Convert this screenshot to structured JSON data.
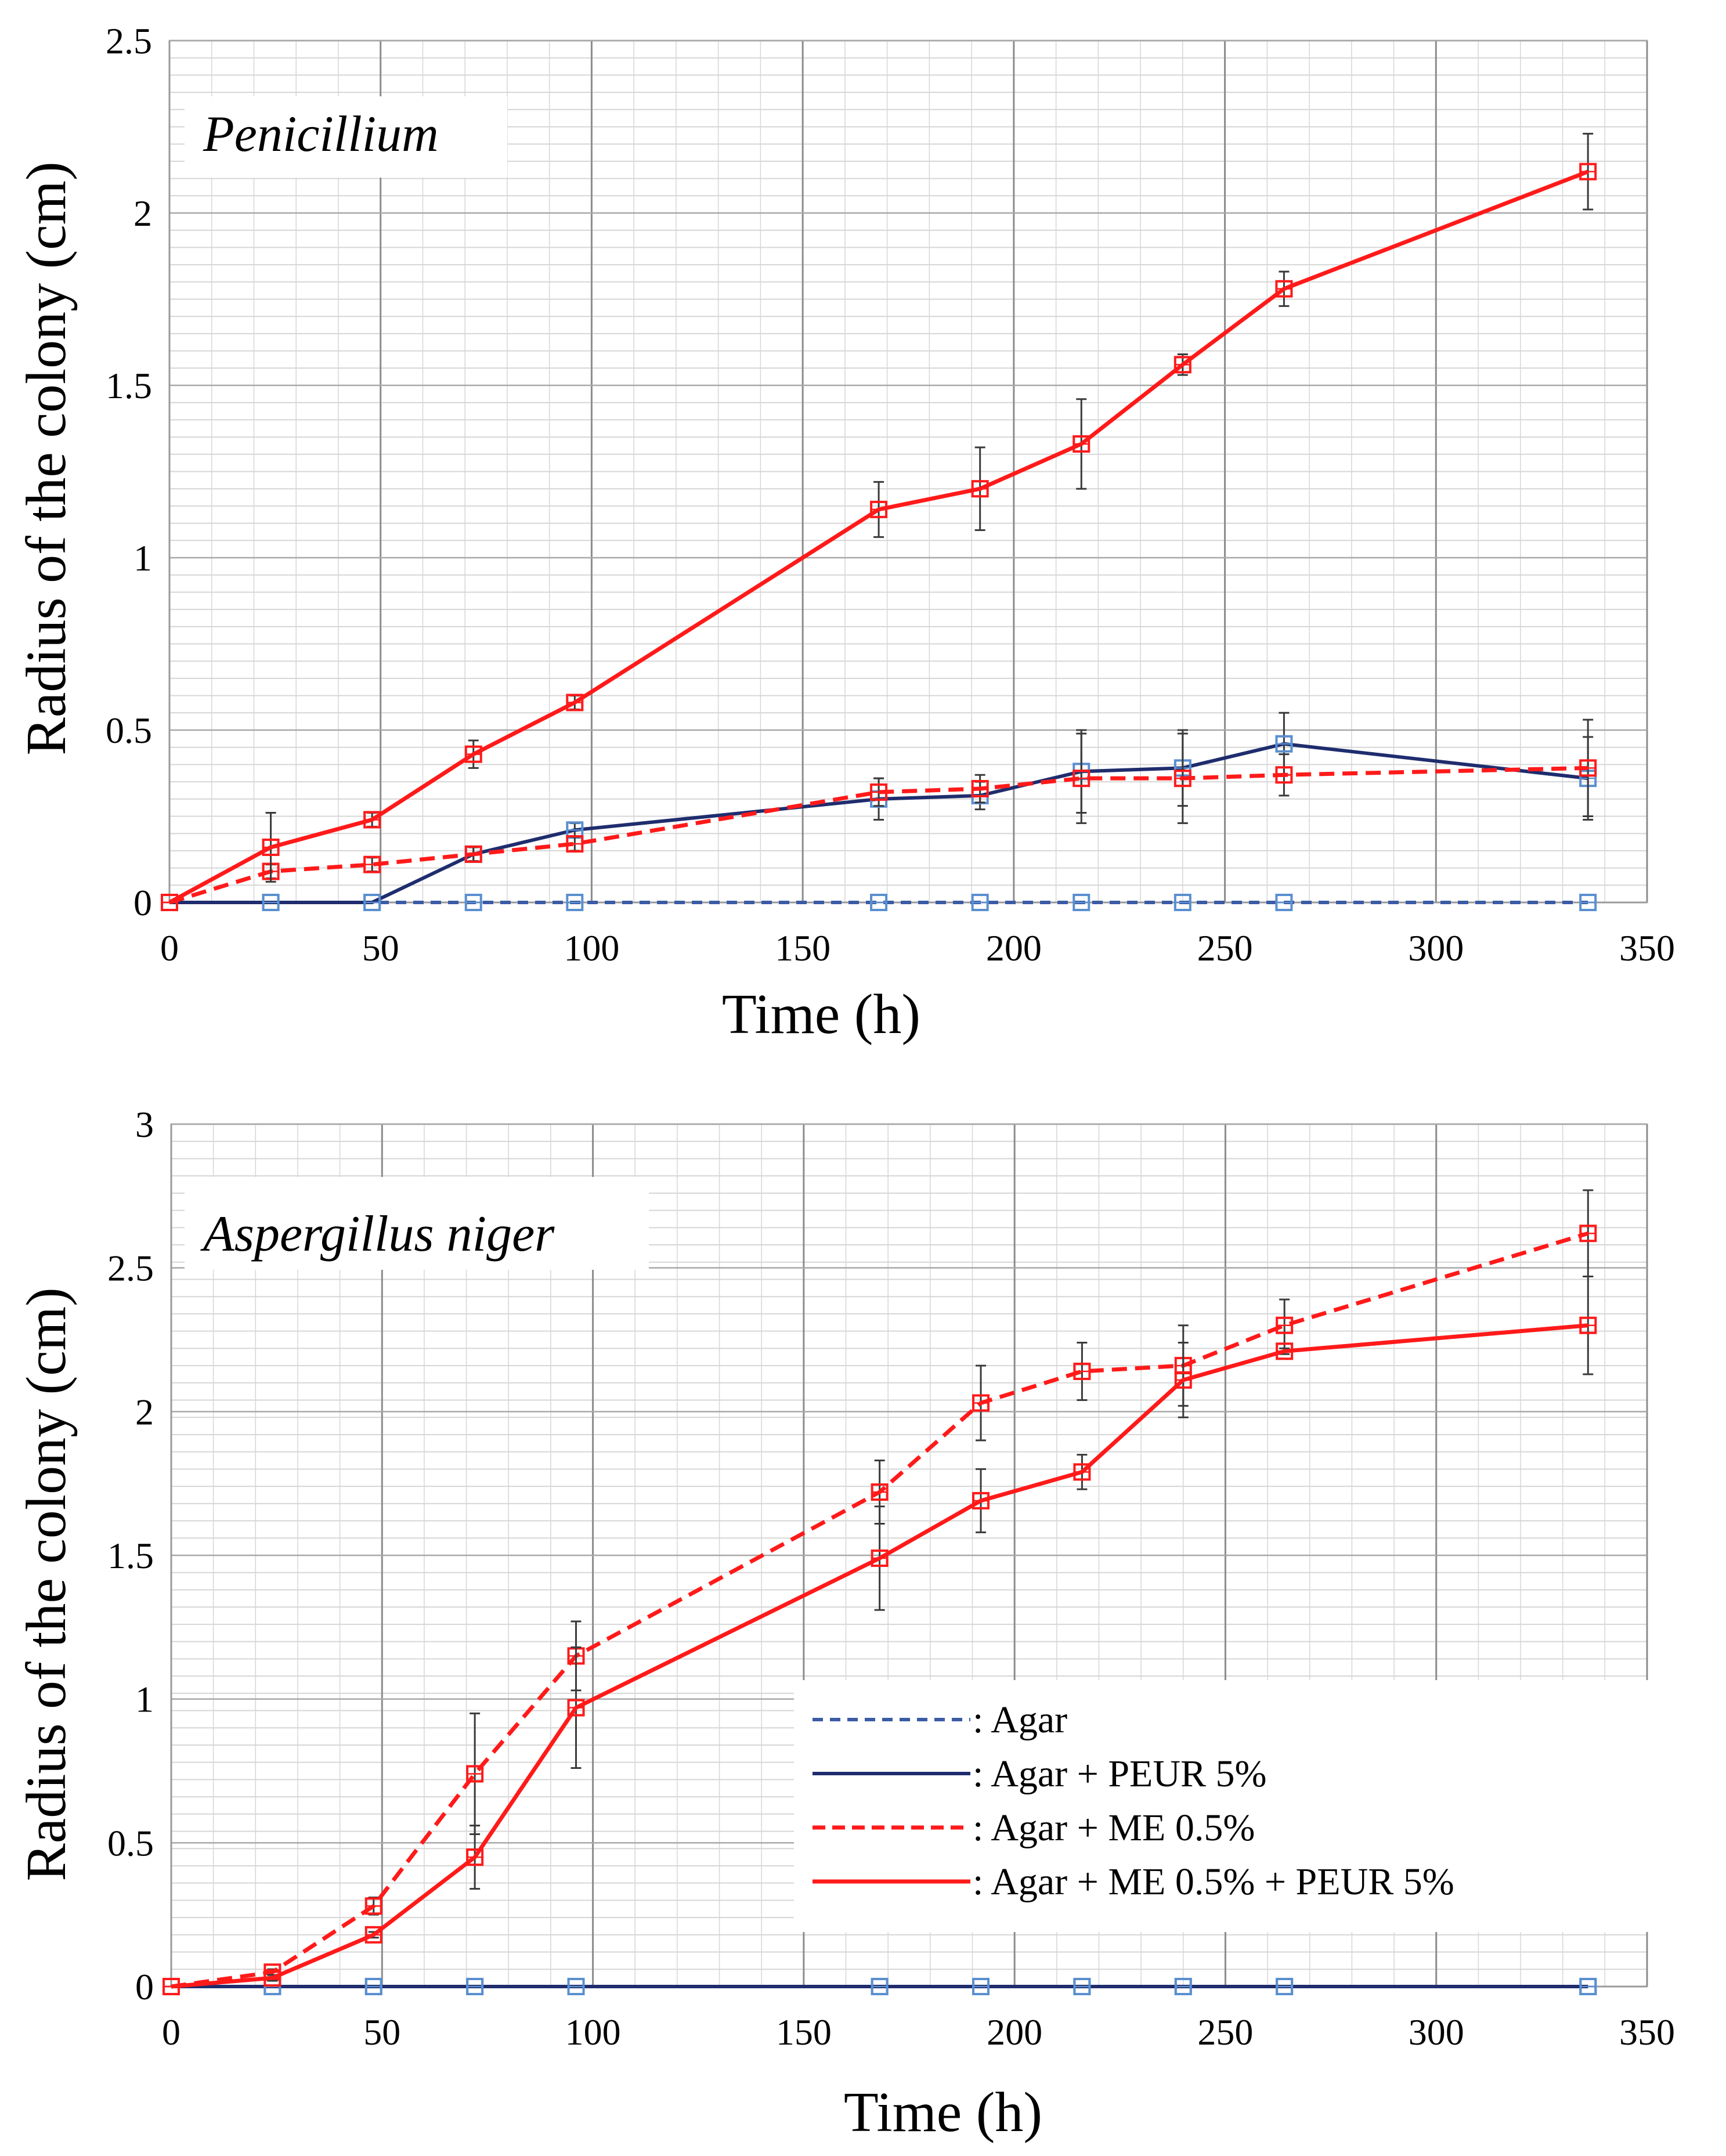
{
  "colors": {
    "agar": "#3b5ba5",
    "agar_peur": "#1f2d6e",
    "red": "#ff1a1a",
    "agar_marker": "#5a8fd0",
    "grid_major": "#8c8c8c",
    "grid_minor": "#d6d6d6",
    "errorbar": "#3a3a3a"
  },
  "legend": {
    "entries": [
      {
        "name": "Agar",
        "label": ": Agar",
        "color": "#3b5ba5",
        "dash": true
      },
      {
        "name": "Agar + PEUR 5%",
        "label": ": Agar + PEUR 5%",
        "color": "#1f2d6e",
        "dash": false
      },
      {
        "name": "Agar + ME 0.5%",
        "label": ": Agar + ME 0.5%",
        "color": "#ff1a1a",
        "dash": true
      },
      {
        "name": "Agar + ME 0.5% + PEUR 5%",
        "label": ": Agar + ME 0.5% + PEUR 5%",
        "color": "#ff1a1a",
        "dash": false
      }
    ]
  },
  "chart_data": [
    {
      "type": "line",
      "title": "Penicillium",
      "xlabel": "Time (h)",
      "ylabel": "Radius of the colony (cm)",
      "xlim": [
        0,
        350
      ],
      "ylim": [
        0,
        2.5
      ],
      "xticks": [
        "0",
        "50",
        "100",
        "150",
        "200",
        "250",
        "300",
        "350"
      ],
      "yticks": [
        "0",
        "0.5",
        "1",
        "1.5",
        "2",
        "2.5"
      ],
      "xtick_values": [
        0,
        50,
        100,
        150,
        200,
        250,
        300,
        350
      ],
      "ytick_values": [
        0,
        0.5,
        1,
        1.5,
        2,
        2.5
      ],
      "series": [
        {
          "name": "Agar",
          "color": "#3b5ba5",
          "dash": true,
          "marker_color": "#5a8fd0",
          "x": [
            0,
            24,
            48,
            72,
            96,
            168,
            192,
            216,
            240,
            264,
            336
          ],
          "y": [
            0,
            0,
            0,
            0,
            0,
            0,
            0,
            0,
            0,
            0,
            0
          ],
          "err": [
            0,
            0,
            0,
            0,
            0,
            0,
            0,
            0,
            0,
            0,
            0
          ]
        },
        {
          "name": "Agar + PEUR 5%",
          "color": "#1f2d6e",
          "dash": false,
          "marker_color": "#5a8fd0",
          "x": [
            0,
            24,
            48,
            72,
            96,
            168,
            192,
            216,
            240,
            264,
            336
          ],
          "y": [
            0,
            0,
            0,
            0.14,
            0.21,
            0.3,
            0.31,
            0.38,
            0.39,
            0.46,
            0.36
          ],
          "err": [
            0,
            0,
            0,
            0.02,
            0.02,
            0.06,
            0.04,
            0.12,
            0.11,
            0.09,
            0.12
          ]
        },
        {
          "name": "Agar + ME 0.5%",
          "color": "#ff1a1a",
          "dash": true,
          "marker_color": "#ff1a1a",
          "x": [
            0,
            24,
            48,
            72,
            96,
            168,
            192,
            216,
            240,
            264,
            336
          ],
          "y": [
            0,
            0.09,
            0.11,
            0.14,
            0.17,
            0.32,
            0.33,
            0.36,
            0.36,
            0.37,
            0.39
          ],
          "err": [
            0,
            0.02,
            0.02,
            0.02,
            0.02,
            0.04,
            0.04,
            0.13,
            0.13,
            0.06,
            0.14
          ]
        },
        {
          "name": "Agar + ME 0.5% + PEUR 5%",
          "color": "#ff1a1a",
          "dash": false,
          "marker_color": "#ff1a1a",
          "x": [
            0,
            24,
            48,
            72,
            96,
            168,
            192,
            216,
            240,
            264,
            336
          ],
          "y": [
            0,
            0.16,
            0.24,
            0.43,
            0.58,
            1.14,
            1.2,
            1.33,
            1.56,
            1.78,
            2.12
          ],
          "err": [
            0,
            0.1,
            0.02,
            0.04,
            0.02,
            0.08,
            0.12,
            0.13,
            0.03,
            0.05,
            0.11
          ]
        }
      ]
    },
    {
      "type": "line",
      "title": "Aspergillus niger",
      "xlabel": "Time (h)",
      "ylabel": "Radius of the colony (cm)",
      "xlim": [
        0,
        350
      ],
      "ylim": [
        0,
        3
      ],
      "xticks": [
        "0",
        "50",
        "100",
        "150",
        "200",
        "250",
        "300",
        "350"
      ],
      "yticks": [
        "0",
        "0.5",
        "1",
        "1.5",
        "2",
        "2.5",
        "3"
      ],
      "xtick_values": [
        0,
        50,
        100,
        150,
        200,
        250,
        300,
        350
      ],
      "ytick_values": [
        0,
        0.5,
        1,
        1.5,
        2,
        2.5,
        3
      ],
      "series": [
        {
          "name": "Agar",
          "color": "#3b5ba5",
          "dash": true,
          "marker_color": "#5a8fd0",
          "x": [
            0,
            24,
            48,
            72,
            96,
            168,
            192,
            216,
            240,
            264,
            336
          ],
          "y": [
            0,
            0,
            0,
            0,
            0,
            0,
            0,
            0,
            0,
            0,
            0
          ],
          "err": [
            0,
            0,
            0,
            0,
            0,
            0,
            0,
            0,
            0,
            0,
            0
          ]
        },
        {
          "name": "Agar + PEUR 5%",
          "color": "#1f2d6e",
          "dash": false,
          "marker_color": "#5a8fd0",
          "x": [
            0,
            24,
            48,
            72,
            96,
            168,
            192,
            216,
            240,
            264,
            336
          ],
          "y": [
            0,
            0,
            0,
            0,
            0,
            0,
            0,
            0,
            0,
            0,
            0
          ],
          "err": [
            0,
            0,
            0,
            0,
            0,
            0,
            0,
            0,
            0,
            0,
            0
          ]
        },
        {
          "name": "Agar + ME 0.5%",
          "color": "#ff1a1a",
          "dash": true,
          "marker_color": "#ff1a1a",
          "x": [
            0,
            24,
            48,
            72,
            96,
            168,
            192,
            216,
            240,
            264,
            336
          ],
          "y": [
            0,
            0.05,
            0.28,
            0.74,
            1.15,
            1.72,
            2.03,
            2.14,
            2.16,
            2.3,
            2.62
          ],
          "err": [
            0,
            0.01,
            0.03,
            0.21,
            0.12,
            0.11,
            0.13,
            0.1,
            0.14,
            0.09,
            0.15
          ]
        },
        {
          "name": "Agar + ME 0.5% + PEUR 5%",
          "color": "#ff1a1a",
          "dash": false,
          "marker_color": "#ff1a1a",
          "x": [
            0,
            24,
            48,
            72,
            96,
            168,
            192,
            216,
            240,
            264,
            336
          ],
          "y": [
            0,
            0.03,
            0.18,
            0.45,
            0.97,
            1.49,
            1.69,
            1.79,
            2.11,
            2.21,
            2.3
          ],
          "err": [
            0,
            0.01,
            0.01,
            0.11,
            0.21,
            0.18,
            0.11,
            0.06,
            0.13,
            0.01,
            0.17
          ]
        }
      ]
    }
  ]
}
